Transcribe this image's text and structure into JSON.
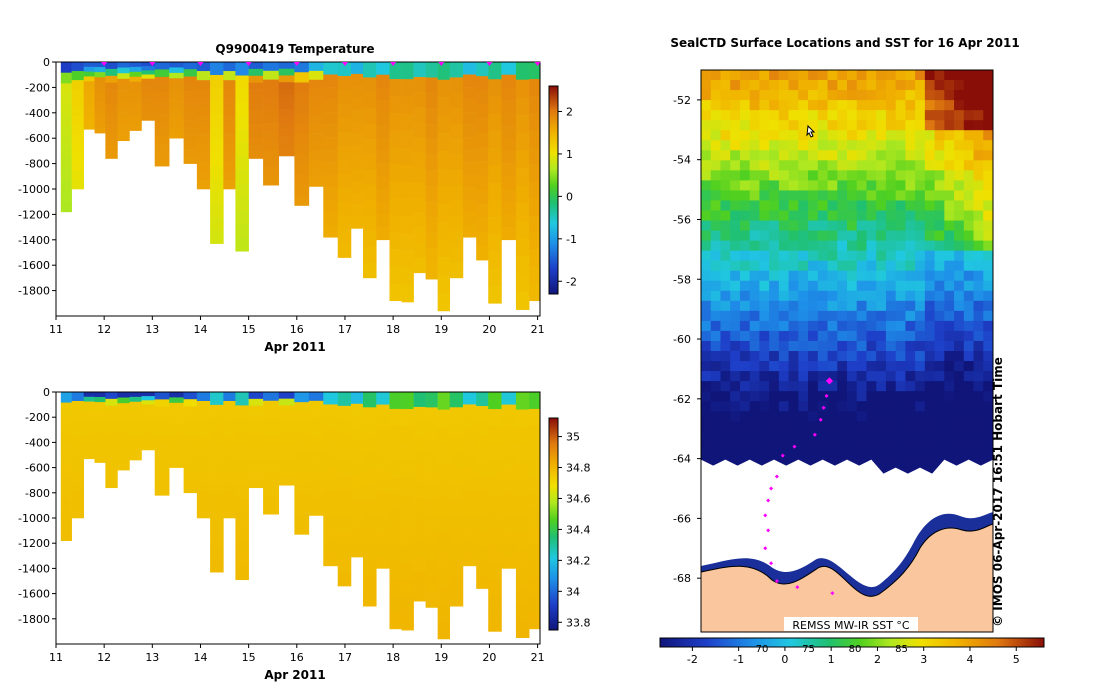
{
  "chart_data": [
    {
      "type": "heatmap",
      "title": "Q9900419  Temperature",
      "xlabel": "Apr 2011",
      "ylabel": "",
      "xlim": [
        11,
        21.05
      ],
      "ylim": [
        -2000,
        0
      ],
      "x_ticks": [
        "11",
        "12",
        "13",
        "14",
        "15",
        "16",
        "17",
        "18",
        "19",
        "20",
        "21"
      ],
      "y_ticks": [
        "0",
        "-200",
        "-400",
        "-600",
        "-800",
        "-1000",
        "-1200",
        "-1400",
        "-1600",
        "-1800"
      ],
      "colorbar_ticks": [
        "2",
        "1",
        "0",
        "-1",
        "-2"
      ],
      "colorbar_range": [
        -2.3,
        2.6
      ],
      "profile_markers_day": [
        12,
        13,
        14,
        15,
        16,
        17,
        18,
        19,
        20,
        21
      ],
      "profiles": [
        {
          "x": 11.2,
          "max_depth": -1180,
          "surface": -1.8,
          "deep": 0.2
        },
        {
          "x": 11.45,
          "max_depth": -1000,
          "surface": -1.6,
          "deep": 0.5
        },
        {
          "x": 11.7,
          "max_depth": -530,
          "surface": -1.5,
          "deep": 0.9
        },
        {
          "x": 11.9,
          "max_depth": -560,
          "surface": -1.5,
          "deep": 1.1
        },
        {
          "x": 12.15,
          "max_depth": -760,
          "surface": -1.6,
          "deep": 1.2
        },
        {
          "x": 12.4,
          "max_depth": -620,
          "surface": -1.4,
          "deep": 1.1
        },
        {
          "x": 12.65,
          "max_depth": -540,
          "surface": -1.5,
          "deep": 1.1
        },
        {
          "x": 12.9,
          "max_depth": -460,
          "surface": -1.6,
          "deep": 1.2
        },
        {
          "x": 13.2,
          "max_depth": -820,
          "surface": -1.4,
          "deep": 1.2
        },
        {
          "x": 13.5,
          "max_depth": -600,
          "surface": -1.5,
          "deep": 1.1
        },
        {
          "x": 13.8,
          "max_depth": -800,
          "surface": -1.4,
          "deep": 1.2
        },
        {
          "x": 14.05,
          "max_depth": -1000,
          "surface": -1.5,
          "deep": 1.2
        },
        {
          "x": 14.35,
          "max_depth": -1430,
          "surface": -1.5,
          "deep": 0.5
        },
        {
          "x": 14.6,
          "max_depth": -1000,
          "surface": -1.4,
          "deep": 1.2
        },
        {
          "x": 14.85,
          "max_depth": -1490,
          "surface": -1.5,
          "deep": 0.4
        },
        {
          "x": 15.15,
          "max_depth": -760,
          "surface": -1.5,
          "deep": 1.3
        },
        {
          "x": 15.45,
          "max_depth": -970,
          "surface": -1.3,
          "deep": 1.3
        },
        {
          "x": 15.8,
          "max_depth": -740,
          "surface": -1.4,
          "deep": 1.4
        },
        {
          "x": 16.1,
          "max_depth": -1130,
          "surface": -1.3,
          "deep": 1.3
        },
        {
          "x": 16.4,
          "max_depth": -980,
          "surface": -0.8,
          "deep": 1.2
        },
        {
          "x": 16.7,
          "max_depth": -1380,
          "surface": -0.8,
          "deep": 1.2
        },
        {
          "x": 17.0,
          "max_depth": -1540,
          "surface": -0.9,
          "deep": 1.1
        },
        {
          "x": 17.25,
          "max_depth": -1310,
          "surface": -1.0,
          "deep": 1.1
        },
        {
          "x": 17.5,
          "max_depth": -1700,
          "surface": -1.0,
          "deep": 1.1
        },
        {
          "x": 17.8,
          "max_depth": -1400,
          "surface": -0.9,
          "deep": 1.2
        },
        {
          "x": 18.05,
          "max_depth": -1880,
          "surface": -1.0,
          "deep": 1.1
        },
        {
          "x": 18.3,
          "max_depth": -1890,
          "surface": -1.0,
          "deep": 1.1
        },
        {
          "x": 18.55,
          "max_depth": -1660,
          "surface": -1.0,
          "deep": 1.1
        },
        {
          "x": 18.8,
          "max_depth": -1710,
          "surface": -0.9,
          "deep": 1.2
        },
        {
          "x": 19.05,
          "max_depth": -1960,
          "surface": -1.0,
          "deep": 1.1
        },
        {
          "x": 19.3,
          "max_depth": -1700,
          "surface": -0.9,
          "deep": 1.1
        },
        {
          "x": 19.6,
          "max_depth": -1380,
          "surface": -1.0,
          "deep": 1.2
        },
        {
          "x": 19.85,
          "max_depth": -1560,
          "surface": -0.9,
          "deep": 1.2
        },
        {
          "x": 20.1,
          "max_depth": -1900,
          "surface": -1.0,
          "deep": 1.1
        },
        {
          "x": 20.4,
          "max_depth": -1400,
          "surface": -0.9,
          "deep": 1.2
        },
        {
          "x": 20.7,
          "max_depth": -1950,
          "surface": -0.9,
          "deep": 1.1
        },
        {
          "x": 20.95,
          "max_depth": -1880,
          "surface": -0.8,
          "deep": 1.2
        }
      ]
    },
    {
      "type": "heatmap",
      "title": "",
      "xlabel": "Apr 2011",
      "ylabel": "",
      "xlim": [
        11,
        21.05
      ],
      "ylim": [
        -2000,
        0
      ],
      "x_ticks": [
        "11",
        "12",
        "13",
        "14",
        "15",
        "16",
        "17",
        "18",
        "19",
        "20",
        "21"
      ],
      "y_ticks": [
        "0",
        "-200",
        "-400",
        "-600",
        "-800",
        "-1000",
        "-1200",
        "-1400",
        "-1600",
        "-1800"
      ],
      "colorbar_ticks": [
        "35",
        "34.8",
        "34.6",
        "34.4",
        "34.2",
        "34",
        "33.8"
      ],
      "colorbar_range": [
        33.75,
        35.12
      ],
      "profiles_ref": "same profile depths as temperature section",
      "surface_value": 33.9,
      "deep_value": 34.75
    },
    {
      "type": "heatmap",
      "title": "SealCTD Surface Locations and SST for 16 Apr 2011",
      "xlabel": "",
      "ylabel": "",
      "y_ticks": [
        "-52",
        "-54",
        "-56",
        "-58",
        "-60",
        "-62",
        "-64",
        "-66",
        "-68"
      ],
      "lat_range": [
        -69.8,
        -51.0
      ],
      "colorbar_ticks": [
        "-2",
        "-1",
        "0",
        "1",
        "2",
        "3",
        "4",
        "5"
      ],
      "colorbar_range": [
        -2.7,
        5.6
      ],
      "colorbar_top_labels": [
        "70",
        "75",
        "80",
        "85"
      ],
      "inset_label": "REMSS MW-IR SST °C",
      "credit": "© IMOS 06-Apr-2017 16:51 Hobart Time",
      "sea_ice_edge_lat": -64.1,
      "track_points": [
        {
          "lat": -61.4,
          "lon_frac": 0.44,
          "size": "large"
        },
        {
          "lat": -61.9,
          "lon_frac": 0.43
        },
        {
          "lat": -62.3,
          "lon_frac": 0.42
        },
        {
          "lat": -62.7,
          "lon_frac": 0.41
        },
        {
          "lat": -63.2,
          "lon_frac": 0.39
        },
        {
          "lat": -63.6,
          "lon_frac": 0.32
        },
        {
          "lat": -63.9,
          "lon_frac": 0.28
        },
        {
          "lat": -64.6,
          "lon_frac": 0.26
        },
        {
          "lat": -65.0,
          "lon_frac": 0.24
        },
        {
          "lat": -65.4,
          "lon_frac": 0.23
        },
        {
          "lat": -65.9,
          "lon_frac": 0.22
        },
        {
          "lat": -66.4,
          "lon_frac": 0.23
        },
        {
          "lat": -67.0,
          "lon_frac": 0.22
        },
        {
          "lat": -67.5,
          "lon_frac": 0.24
        },
        {
          "lat": -68.1,
          "lon_frac": 0.26
        },
        {
          "lat": -68.3,
          "lon_frac": 0.33
        },
        {
          "lat": -68.5,
          "lon_frac": 0.45
        }
      ]
    }
  ]
}
